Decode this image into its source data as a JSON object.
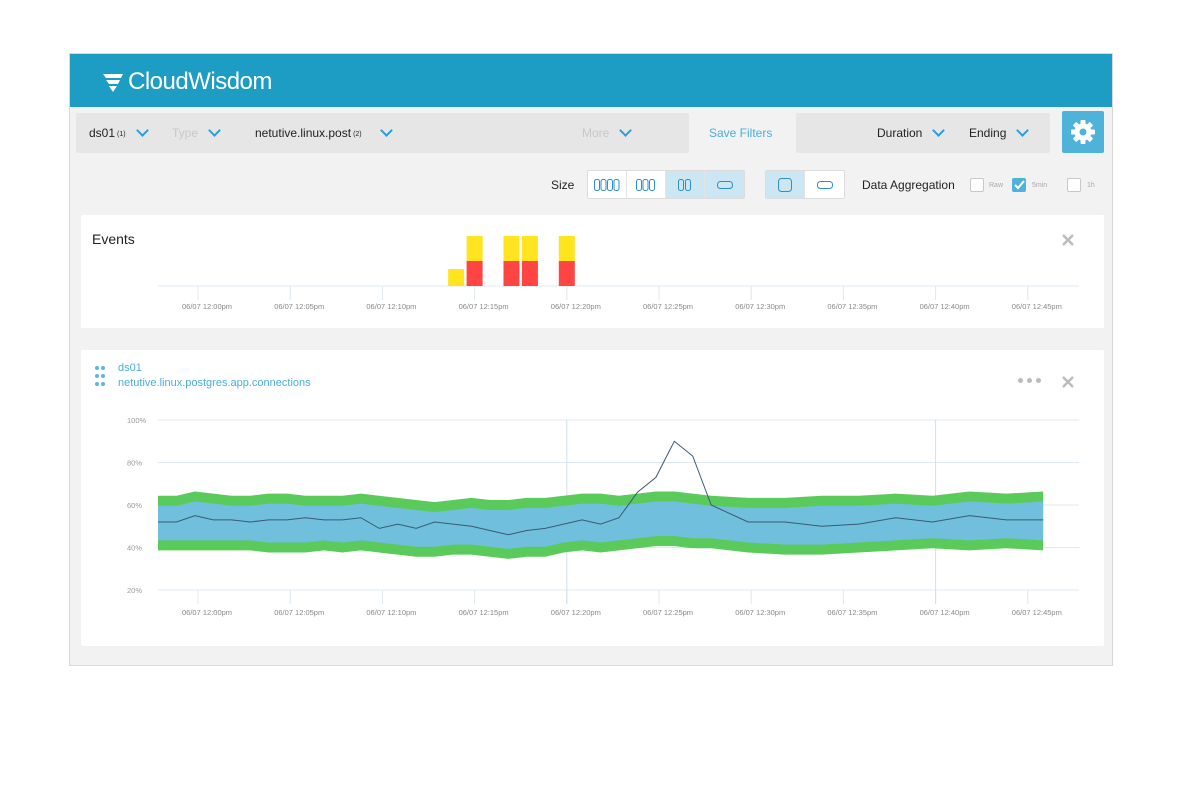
{
  "header": {
    "logo_text": "CloudWisdom"
  },
  "filters": {
    "items": [
      {
        "label": "ds01",
        "sub": "(1)"
      },
      {
        "label": "Type",
        "sub": ""
      },
      {
        "label": "netutive.linux.post",
        "sub": "(2)"
      },
      {
        "label": "More",
        "sub": ""
      }
    ],
    "save_filters": "Save Filters",
    "duration": "Duration",
    "ending": "Ending"
  },
  "toolbar": {
    "size_label": "Size",
    "data_aggregation_label": "Data Aggregation",
    "aggregation_options": [
      {
        "label": "Raw",
        "checked": false
      },
      {
        "label": "5min",
        "checked": true
      },
      {
        "label": "1h",
        "checked": false
      }
    ]
  },
  "events_panel": {
    "title": "Events"
  },
  "metric_panel": {
    "datasource": "ds01",
    "metric": "netutive.linux.postgres.app.connections"
  },
  "colors": {
    "header": "#1d9dc3",
    "accent": "#4aaed8",
    "event_warning": "#ffe41f",
    "event_critical": "#ff4444",
    "band_outer": "#5acb5a",
    "band_inner": "#70bfdc",
    "line": "#3b5a72"
  },
  "chart_data": [
    {
      "type": "bar",
      "title": "Events",
      "x_ticks": [
        "06/07 12:00pm",
        "06/07 12:05pm",
        "06/07 12:10pm",
        "06/07 12:15pm",
        "06/07 12:20pm",
        "06/07 12:25pm",
        "06/07 12:30pm",
        "06/07 12:35pm",
        "06/07 12:40pm",
        "06/07 12:45pm"
      ],
      "series": [
        {
          "name": "warning",
          "values": [
            {
              "x": "06/07 12:14pm",
              "y": 1
            },
            {
              "x": "06/07 12:15pm",
              "y": 1
            },
            {
              "x": "06/07 12:17pm",
              "y": 1
            },
            {
              "x": "06/07 12:18pm",
              "y": 1
            },
            {
              "x": "06/07 12:20pm",
              "y": 1
            }
          ]
        },
        {
          "name": "critical",
          "values": [
            {
              "x": "06/07 12:15pm",
              "y": 1
            },
            {
              "x": "06/07 12:17pm",
              "y": 1
            },
            {
              "x": "06/07 12:18pm",
              "y": 1
            },
            {
              "x": "06/07 12:20pm",
              "y": 1
            }
          ]
        }
      ]
    },
    {
      "type": "area",
      "title": "netutive.linux.postgres.app.connections",
      "y_ticks": [
        "100%",
        "80%",
        "60%",
        "40%",
        "20%"
      ],
      "ylim": [
        20,
        100
      ],
      "x_ticks": [
        "06/07 12:00pm",
        "06/07 12:05pm",
        "06/07 12:10pm",
        "06/07 12:15pm",
        "06/07 12:20pm",
        "06/07 12:25pm",
        "06/07 12:30pm",
        "06/07 12:35pm",
        "06/07 12:40pm",
        "06/07 12:45pm"
      ],
      "x_minutes": [
        0,
        1,
        2,
        3,
        4,
        5,
        6,
        7,
        8,
        9,
        10,
        11,
        12,
        13,
        14,
        15,
        16,
        17,
        18,
        19,
        20,
        21,
        22,
        23,
        24,
        25,
        26,
        27,
        28,
        29,
        30,
        32,
        34,
        36,
        38,
        40,
        42,
        44,
        46,
        48
      ],
      "series": [
        {
          "name": "value",
          "values": [
            52,
            52,
            55,
            53,
            53,
            52,
            53,
            53,
            54,
            53,
            53,
            54,
            49,
            51,
            49,
            52,
            51,
            50,
            48,
            46,
            48,
            49,
            51,
            53,
            51,
            54,
            66,
            73,
            90,
            83,
            60,
            52,
            52,
            50,
            51,
            54,
            52,
            55,
            53,
            53
          ]
        },
        {
          "name": "band_upper",
          "values": [
            62,
            62,
            64,
            63,
            62,
            62,
            63,
            63,
            62,
            62,
            62,
            63,
            62,
            61,
            60,
            59,
            60,
            61,
            60,
            60,
            61,
            61,
            62,
            63,
            63,
            62,
            63,
            64,
            64,
            63,
            62,
            61,
            61,
            62,
            62,
            63,
            62,
            64,
            63,
            64
          ]
        },
        {
          "name": "band_lower",
          "values": [
            41,
            41,
            41,
            41,
            41,
            41,
            40,
            40,
            40,
            41,
            40,
            41,
            40,
            39,
            38,
            38,
            39,
            39,
            38,
            37,
            38,
            38,
            40,
            41,
            40,
            41,
            42,
            43,
            43,
            42,
            42,
            40,
            39,
            39,
            40,
            41,
            42,
            41,
            42,
            41
          ]
        }
      ],
      "vlines_at": [
        "06/07 12:20pm",
        "06/07 12:40pm"
      ]
    }
  ]
}
